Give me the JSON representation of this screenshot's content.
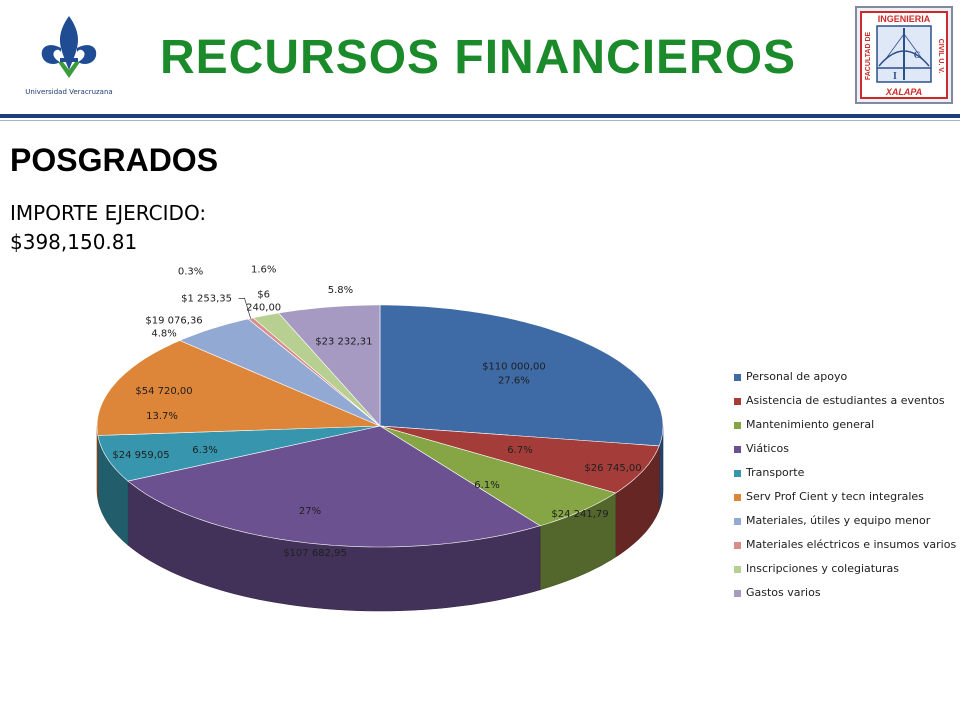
{
  "header": {
    "title": "RECURSOS FINANCIEROS",
    "left_logo_caption": "Universidad Veracruzana",
    "right_logo_text_top": "INGENIERIA",
    "right_logo_text_left": "FACULTAD DE",
    "right_logo_text_right": "CIVIL U. V.",
    "right_logo_text_bottom": "XALAPA",
    "right_logo_letters": [
      "I",
      "C"
    ]
  },
  "section": {
    "title": "POSGRADOS",
    "importe_label": "IMPORTE EJERCIDO:",
    "importe_value": "$398,150.81"
  },
  "chart_data": {
    "type": "pie",
    "legend_position": "right",
    "series": [
      {
        "name": "Personal de apoyo",
        "value": 110000.0,
        "value_label": "$110 000,00",
        "percent_label": "27.6%",
        "color": "#3e6aa6"
      },
      {
        "name": "Asistencia de estudiantes a eventos",
        "value": 26745.0,
        "value_label": "$26 745,00",
        "percent_label": "6.7%",
        "color": "#a43d3a"
      },
      {
        "name": "Mantenimiento general",
        "value": 24241.79,
        "value_label": "$24 241,79",
        "percent_label": "6.1%",
        "color": "#86a545"
      },
      {
        "name": "Viáticos",
        "value": 107682.95,
        "value_label": "$107 682,95",
        "percent_label": "27%",
        "color": "#6b5190"
      },
      {
        "name": "Transporte",
        "value": 24959.05,
        "value_label": "$24 959,05",
        "percent_label": "6.3%",
        "color": "#3796ad"
      },
      {
        "name": "Serv Prof Cient y tecn integrales",
        "value": 54720.0,
        "value_label": "$54 720,00",
        "percent_label": "13.7%",
        "color": "#dd8539"
      },
      {
        "name": "Materiales, útiles y equipo menor",
        "value": 19076.36,
        "value_label": "$19 076,36",
        "percent_label": "4.8%",
        "color": "#92a9d3"
      },
      {
        "name": "Materiales eléctricos e insumos varios",
        "value": 1253.35,
        "value_label": "$1 253,35",
        "percent_label": "0.3%",
        "color": "#d98d88"
      },
      {
        "name": "Inscripciones y colegiaturas",
        "value": 6240.0,
        "value_label": "$6 240,00",
        "percent_label": "1.6%",
        "color": "#b7cf90"
      },
      {
        "name": "Gastos varios",
        "value": 23232.31,
        "value_label": "$23 232,31",
        "percent_label": "5.8%",
        "color": "#a79ac2"
      }
    ]
  }
}
